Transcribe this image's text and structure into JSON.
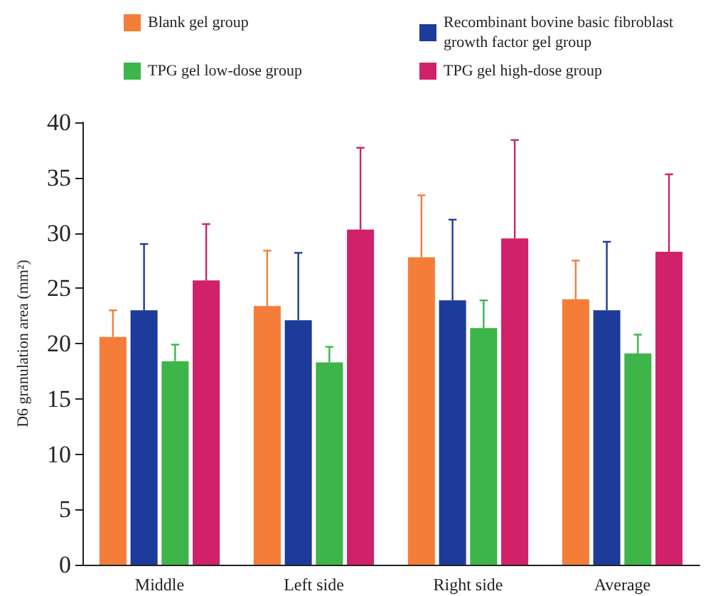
{
  "chart_data": {
    "type": "bar",
    "ylabel": "D6 granulation area (mm²)",
    "categories": [
      "Middle",
      "Left side",
      "Right side",
      "Average"
    ],
    "series": [
      {
        "name": "Blank gel group",
        "color": "#f47d3a",
        "values": [
          20.6,
          23.4,
          27.8,
          24.0
        ],
        "errors": [
          [
            20.6,
            23.0
          ],
          [
            23.4,
            28.4
          ],
          [
            27.8,
            33.4
          ],
          [
            24.0,
            27.5
          ]
        ]
      },
      {
        "name": "Recombinant bovine basic fibroblast growth factor gel group",
        "color": "#1d3b9a",
        "values": [
          23.0,
          22.1,
          23.9,
          23.0
        ],
        "errors": [
          [
            23.0,
            29.0
          ],
          [
            22.1,
            28.2
          ],
          [
            23.9,
            31.2
          ],
          [
            23.0,
            29.2
          ]
        ]
      },
      {
        "name": "TPG gel low-dose group",
        "color": "#3db549",
        "values": [
          18.4,
          18.3,
          21.4,
          19.1
        ],
        "errors": [
          [
            18.4,
            19.9
          ],
          [
            18.3,
            19.7
          ],
          [
            21.4,
            23.9
          ],
          [
            19.1,
            20.8
          ]
        ]
      },
      {
        "name": "TPG gel high-dose group",
        "color": "#d0216a",
        "values": [
          25.7,
          30.3,
          29.5,
          28.3
        ],
        "errors": [
          [
            25.7,
            30.8
          ],
          [
            30.3,
            37.7
          ],
          [
            29.5,
            38.4
          ],
          [
            28.3,
            35.3
          ]
        ]
      }
    ],
    "ylim": [
      0,
      40
    ],
    "yticks": [
      0,
      5,
      10,
      15,
      20,
      25,
      30,
      35,
      40
    ],
    "grid": false,
    "legend": "top"
  }
}
